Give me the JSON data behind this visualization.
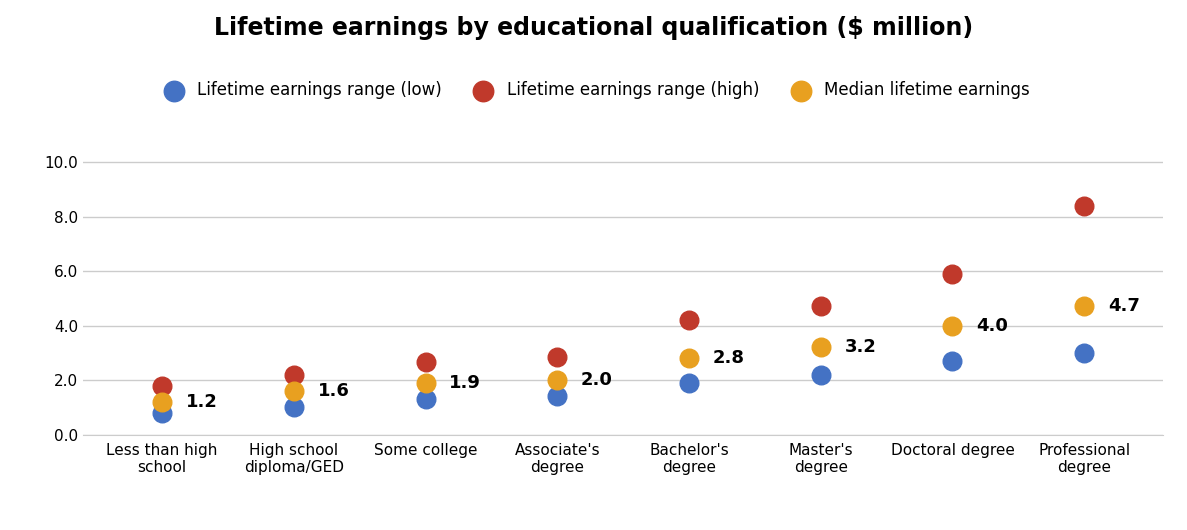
{
  "title": "Lifetime earnings by educational qualification ($ million)",
  "categories": [
    "Less than high\nschool",
    "High school\ndiploma/GED",
    "Some college",
    "Associate's\ndegree",
    "Bachelor's\ndegree",
    "Master's\ndegree",
    "Doctoral degree",
    "Professional\ndegree"
  ],
  "low": [
    0.8,
    1.0,
    1.3,
    1.4,
    1.9,
    2.2,
    2.7,
    3.0
  ],
  "high": [
    1.8,
    2.2,
    2.65,
    2.85,
    4.2,
    4.7,
    5.9,
    8.4
  ],
  "median": [
    1.2,
    1.6,
    1.9,
    2.0,
    2.8,
    3.2,
    4.0,
    4.7
  ],
  "median_labels": [
    "1.2",
    "1.6",
    "1.9",
    "2.0",
    "2.8",
    "3.2",
    "4.0",
    "4.7"
  ],
  "color_low": "#4472C4",
  "color_high": "#C0392B",
  "color_median": "#E8A020",
  "ylim": [
    0,
    10.5
  ],
  "yticks": [
    0.0,
    2.0,
    4.0,
    6.0,
    8.0,
    10.0
  ],
  "ytick_labels": [
    "0.0",
    "2.0",
    "4.0",
    "6.0",
    "8.0",
    "10.0"
  ],
  "legend_low": "Lifetime earnings range (low)",
  "legend_high": "Lifetime earnings range (high)",
  "legend_median": "Median lifetime earnings",
  "marker_size": 180,
  "bg_color": "#ffffff",
  "grid_color": "#cccccc",
  "label_fontsize": 13,
  "title_fontsize": 17
}
